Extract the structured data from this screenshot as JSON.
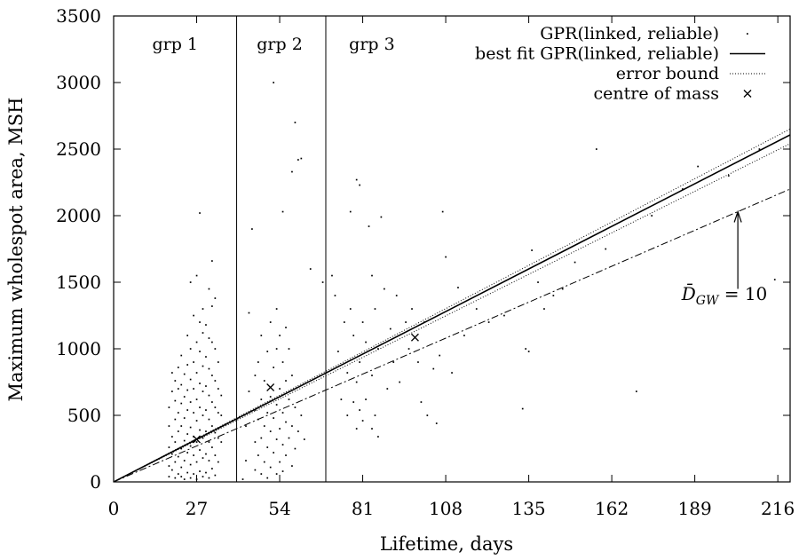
{
  "chart_data": {
    "type": "scatter",
    "xlabel": "Lifetime, days",
    "ylabel": "Maximum wholespot area, MSH",
    "xlim": [
      0,
      220
    ],
    "ylim": [
      0,
      3500
    ],
    "xticks": [
      0,
      27,
      54,
      81,
      108,
      135,
      162,
      189,
      216
    ],
    "yticks": [
      0,
      500,
      1000,
      1500,
      2000,
      2500,
      3000,
      3500
    ],
    "grid": false,
    "legend_position": "top-right",
    "group_boundaries": [
      40,
      69
    ],
    "group_labels": [
      {
        "text": "grp 1",
        "x": 20
      },
      {
        "text": "grp 2",
        "x": 54
      },
      {
        "text": "grp 3",
        "x": 84
      }
    ],
    "series": [
      {
        "name": "GPR(linked, reliable)",
        "kind": "points",
        "points": [
          [
            18,
            40
          ],
          [
            18,
            120
          ],
          [
            18,
            260
          ],
          [
            18,
            420
          ],
          [
            18,
            560
          ],
          [
            19,
            90
          ],
          [
            19,
            210
          ],
          [
            19,
            340
          ],
          [
            19,
            680
          ],
          [
            19,
            820
          ],
          [
            20,
            30
          ],
          [
            20,
            150
          ],
          [
            20,
            300
          ],
          [
            20,
            470
          ],
          [
            20,
            610
          ],
          [
            20,
            760
          ],
          [
            21,
            60
          ],
          [
            21,
            190
          ],
          [
            21,
            380
          ],
          [
            21,
            520
          ],
          [
            21,
            700
          ],
          [
            21,
            860
          ],
          [
            22,
            40
          ],
          [
            22,
            110
          ],
          [
            22,
            250
          ],
          [
            22,
            420
          ],
          [
            22,
            590
          ],
          [
            22,
            730
          ],
          [
            22,
            950
          ],
          [
            23,
            20
          ],
          [
            23,
            160
          ],
          [
            23,
            310
          ],
          [
            23,
            480
          ],
          [
            23,
            640
          ],
          [
            23,
            810
          ],
          [
            24,
            70
          ],
          [
            24,
            220
          ],
          [
            24,
            360
          ],
          [
            24,
            540
          ],
          [
            24,
            690
          ],
          [
            24,
            880
          ],
          [
            24,
            1100
          ],
          [
            25,
            30
          ],
          [
            25,
            130
          ],
          [
            25,
            270
          ],
          [
            25,
            410
          ],
          [
            25,
            600
          ],
          [
            25,
            770
          ],
          [
            25,
            1000
          ],
          [
            25,
            1500
          ],
          [
            26,
            60
          ],
          [
            26,
            200
          ],
          [
            26,
            340
          ],
          [
            26,
            520
          ],
          [
            26,
            700
          ],
          [
            26,
            900
          ],
          [
            26,
            1250
          ],
          [
            27,
            20
          ],
          [
            27,
            150
          ],
          [
            27,
            300
          ],
          [
            27,
            460
          ],
          [
            27,
            620
          ],
          [
            27,
            820
          ],
          [
            27,
            1050
          ],
          [
            27,
            1550
          ],
          [
            28,
            80
          ],
          [
            28,
            240
          ],
          [
            28,
            390
          ],
          [
            28,
            560
          ],
          [
            28,
            740
          ],
          [
            28,
            980
          ],
          [
            28,
            1200
          ],
          [
            28,
            2020
          ],
          [
            29,
            40
          ],
          [
            29,
            180
          ],
          [
            29,
            330
          ],
          [
            29,
            500
          ],
          [
            29,
            680
          ],
          [
            29,
            870
          ],
          [
            29,
            1120
          ],
          [
            29,
            1300
          ],
          [
            30,
            70
          ],
          [
            30,
            210
          ],
          [
            30,
            380
          ],
          [
            30,
            540
          ],
          [
            30,
            720
          ],
          [
            30,
            940
          ],
          [
            30,
            1180
          ],
          [
            31,
            30
          ],
          [
            31,
            160
          ],
          [
            31,
            300
          ],
          [
            31,
            470
          ],
          [
            31,
            650
          ],
          [
            31,
            850
          ],
          [
            31,
            1080
          ],
          [
            31,
            1450
          ],
          [
            32,
            100
          ],
          [
            32,
            260
          ],
          [
            32,
            420
          ],
          [
            32,
            600
          ],
          [
            32,
            800
          ],
          [
            32,
            1050
          ],
          [
            32,
            1320
          ],
          [
            32,
            1660
          ],
          [
            33,
            50
          ],
          [
            33,
            200
          ],
          [
            33,
            370
          ],
          [
            33,
            560
          ],
          [
            33,
            760
          ],
          [
            33,
            1000
          ],
          [
            33,
            1380
          ],
          [
            34,
            150
          ],
          [
            34,
            330
          ],
          [
            34,
            520
          ],
          [
            34,
            700
          ],
          [
            34,
            900
          ],
          [
            35,
            300
          ],
          [
            35,
            500
          ],
          [
            35,
            650
          ],
          [
            42,
            20
          ],
          [
            43,
            160
          ],
          [
            43,
            420
          ],
          [
            44,
            680
          ],
          [
            44,
            1270
          ],
          [
            45,
            1900
          ],
          [
            46,
            90
          ],
          [
            46,
            300
          ],
          [
            46,
            540
          ],
          [
            46,
            800
          ],
          [
            47,
            200
          ],
          [
            47,
            470
          ],
          [
            47,
            900
          ],
          [
            48,
            60
          ],
          [
            48,
            330
          ],
          [
            48,
            620
          ],
          [
            48,
            1100
          ],
          [
            49,
            150
          ],
          [
            49,
            420
          ],
          [
            49,
            760
          ],
          [
            50,
            30
          ],
          [
            50,
            260
          ],
          [
            50,
            520
          ],
          [
            50,
            980
          ],
          [
            51,
            110
          ],
          [
            51,
            380
          ],
          [
            51,
            640
          ],
          [
            51,
            1200
          ],
          [
            52,
            220
          ],
          [
            52,
            480
          ],
          [
            52,
            860
          ],
          [
            52,
            3000
          ],
          [
            53,
            60
          ],
          [
            53,
            320
          ],
          [
            53,
            580
          ],
          [
            53,
            1000
          ],
          [
            53,
            1300
          ],
          [
            54,
            150
          ],
          [
            54,
            400
          ],
          [
            54,
            700
          ],
          [
            54,
            1100
          ],
          [
            55,
            80
          ],
          [
            55,
            280
          ],
          [
            55,
            520
          ],
          [
            55,
            900
          ],
          [
            55,
            2030
          ],
          [
            56,
            200
          ],
          [
            56,
            450
          ],
          [
            56,
            760
          ],
          [
            56,
            1160
          ],
          [
            57,
            330
          ],
          [
            57,
            620
          ],
          [
            57,
            1000
          ],
          [
            58,
            120
          ],
          [
            58,
            420
          ],
          [
            58,
            800
          ],
          [
            58,
            2330
          ],
          [
            59,
            250
          ],
          [
            59,
            560
          ],
          [
            59,
            2700
          ],
          [
            60,
            380
          ],
          [
            60,
            2420
          ],
          [
            61,
            500
          ],
          [
            61,
            2430
          ],
          [
            62,
            320
          ],
          [
            64,
            1600
          ],
          [
            68,
            1500
          ],
          [
            71,
            1550
          ],
          [
            72,
            1400
          ],
          [
            73,
            980
          ],
          [
            74,
            620
          ],
          [
            75,
            1200
          ],
          [
            76,
            500
          ],
          [
            76,
            820
          ],
          [
            77,
            2030
          ],
          [
            77,
            1300
          ],
          [
            78,
            600
          ],
          [
            78,
            1100
          ],
          [
            79,
            2270
          ],
          [
            79,
            400
          ],
          [
            79,
            750
          ],
          [
            80,
            2230
          ],
          [
            80,
            900
          ],
          [
            80,
            540
          ],
          [
            81,
            1200
          ],
          [
            81,
            460
          ],
          [
            82,
            1050
          ],
          [
            82,
            620
          ],
          [
            83,
            1920
          ],
          [
            84,
            1550
          ],
          [
            84,
            800
          ],
          [
            84,
            400
          ],
          [
            85,
            1300
          ],
          [
            85,
            500
          ],
          [
            86,
            1000
          ],
          [
            86,
            340
          ],
          [
            87,
            1990
          ],
          [
            88,
            1450
          ],
          [
            89,
            700
          ],
          [
            90,
            1150
          ],
          [
            91,
            900
          ],
          [
            92,
            1400
          ],
          [
            93,
            750
          ],
          [
            95,
            1200
          ],
          [
            96,
            1000
          ],
          [
            97,
            1300
          ],
          [
            99,
            900
          ],
          [
            100,
            600
          ],
          [
            101,
            1200
          ],
          [
            102,
            500
          ],
          [
            104,
            850
          ],
          [
            105,
            440
          ],
          [
            106,
            950
          ],
          [
            107,
            2030
          ],
          [
            108,
            1690
          ],
          [
            110,
            820
          ],
          [
            112,
            1460
          ],
          [
            114,
            1100
          ],
          [
            118,
            1300
          ],
          [
            122,
            1200
          ],
          [
            127,
            1250
          ],
          [
            133,
            550
          ],
          [
            134,
            1000
          ],
          [
            135,
            980
          ],
          [
            136,
            1740
          ],
          [
            138,
            1500
          ],
          [
            140,
            1300
          ],
          [
            143,
            1400
          ],
          [
            146,
            1450
          ],
          [
            150,
            1650
          ],
          [
            157,
            2500
          ],
          [
            160,
            1750
          ],
          [
            170,
            680
          ],
          [
            175,
            2000
          ],
          [
            185,
            2200
          ],
          [
            190,
            2370
          ],
          [
            200,
            2300
          ],
          [
            210,
            2500
          ],
          [
            215,
            1520
          ]
        ]
      },
      {
        "name": "best fit GPR(linked, reliable)",
        "kind": "line",
        "slope": 11.85,
        "x": [
          0,
          220
        ]
      },
      {
        "name": "error bound",
        "kind": "dotted",
        "lines": [
          {
            "slope": 12.05,
            "x": [
              0,
              220
            ]
          },
          {
            "slope": 11.55,
            "x": [
              0,
              220
            ]
          }
        ]
      },
      {
        "name": "centre of mass",
        "kind": "marker",
        "points": [
          [
            27,
            320
          ],
          [
            51,
            710
          ],
          [
            98,
            1085
          ]
        ]
      }
    ],
    "reference_line": {
      "slope": 10.0,
      "x": [
        0,
        220
      ]
    },
    "annotation": {
      "text": "D̄GW = 10",
      "main": "D̄",
      "subscript": "GW",
      "suffix": " = 10",
      "arrow_x": 203,
      "arrow_from_y": 1450,
      "arrow_to_y": 2030
    }
  }
}
